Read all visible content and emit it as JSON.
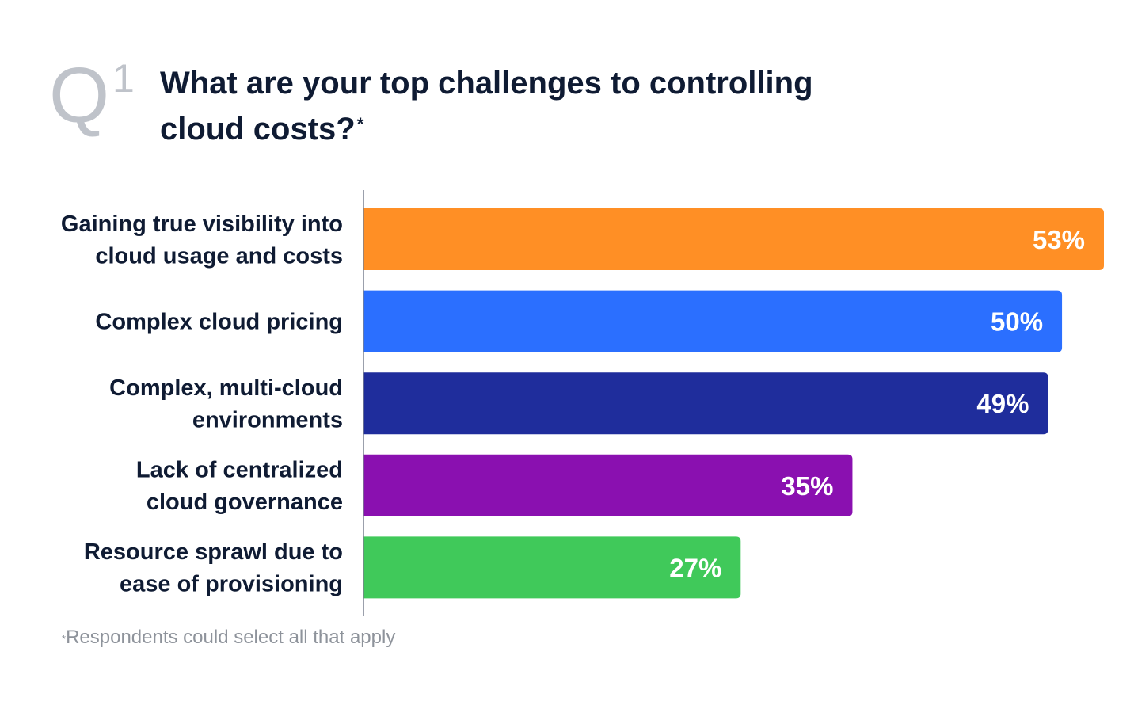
{
  "header": {
    "q_letter": "Q",
    "q_number": "1",
    "title": "What are your top challenges to controlling cloud costs?",
    "title_mark": "*"
  },
  "footnote": {
    "mark": "*",
    "text": "Respondents could select all that apply"
  },
  "chart_data": {
    "type": "bar",
    "orientation": "horizontal",
    "title": "What are your top challenges to controlling cloud costs?",
    "xlabel": "",
    "ylabel": "",
    "xlim": [
      0,
      53
    ],
    "grid": false,
    "legend": "none",
    "categories": [
      [
        "Gaining true visibility into",
        "cloud usage and costs"
      ],
      [
        "Complex cloud pricing"
      ],
      [
        "Complex, multi-cloud",
        "environments"
      ],
      [
        "Lack of centralized",
        "cloud governance"
      ],
      [
        "Resource sprawl due to",
        "ease of provisioning"
      ]
    ],
    "values": [
      53,
      50,
      49,
      35,
      27
    ],
    "value_labels": [
      "53%",
      "50%",
      "49%",
      "35%",
      "27%"
    ],
    "colors": [
      "#ff8f25",
      "#2b6fff",
      "#1f2d9c",
      "#8a10b0",
      "#40c95a"
    ],
    "label_color": "#0f1b33",
    "value_label_color": "#ffffff",
    "axis_color": "#7a8090"
  }
}
